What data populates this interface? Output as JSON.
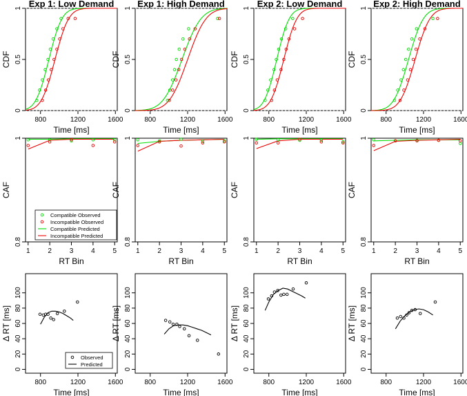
{
  "chart_data": {
    "type": "multi-panel",
    "layout": "3 rows x 4 columns",
    "colors": {
      "compatible": "#00dd00",
      "incompatible": "#ee0000",
      "delta": "#000000",
      "reference": "#aaaaaa"
    },
    "columns": [
      "Exp 1: Low Demand",
      "Exp 1: High Demand",
      "Exp 2: Low Demand",
      "Exp 2: High Demand"
    ],
    "cdf": {
      "xlabel": "Time [ms]",
      "ylabel": "CDF",
      "xlim": [
        640,
        1620
      ],
      "ylim": [
        0,
        1
      ],
      "xticks": [
        "800",
        "1200",
        "1600"
      ],
      "yticks": [
        "0",
        "0.5",
        "1"
      ],
      "panels": [
        {
          "compatible_observed": [
            [
              760,
              0.1
            ],
            [
              790,
              0.2
            ],
            [
              820,
              0.3
            ],
            [
              850,
              0.4
            ],
            [
              880,
              0.5
            ],
            [
              905,
              0.6
            ],
            [
              935,
              0.7
            ],
            [
              975,
              0.8
            ],
            [
              1020,
              0.9
            ]
          ],
          "incompatible_observed": [
            [
              820,
              0.1
            ],
            [
              855,
              0.2
            ],
            [
              885,
              0.3
            ],
            [
              915,
              0.4
            ],
            [
              945,
              0.5
            ],
            [
              975,
              0.6
            ],
            [
              1005,
              0.7
            ],
            [
              1040,
              0.8
            ],
            [
              1095,
              0.9
            ],
            [
              1170,
              0.9
            ]
          ],
          "compatible_predicted": {
            "mu": 890,
            "sigma": 110
          },
          "incompatible_predicted": {
            "mu": 955,
            "sigma": 115
          }
        },
        {
          "compatible_observed": [
            [
              985,
              0.1
            ],
            [
              1010,
              0.2
            ],
            [
              1040,
              0.3
            ],
            [
              1060,
              0.4
            ],
            [
              1080,
              0.5
            ],
            [
              1110,
              0.6
            ],
            [
              1150,
              0.7
            ],
            [
              1210,
              0.8
            ],
            [
              1520,
              0.9
            ]
          ],
          "incompatible_observed": [
            [
              1005,
              0.1
            ],
            [
              1040,
              0.2
            ],
            [
              1075,
              0.3
            ],
            [
              1105,
              0.4
            ],
            [
              1135,
              0.5
            ],
            [
              1170,
              0.6
            ],
            [
              1220,
              0.7
            ],
            [
              1280,
              0.8
            ],
            [
              1540,
              0.9
            ]
          ],
          "compatible_predicted": {
            "mu": 1140,
            "sigma": 160
          },
          "incompatible_predicted": {
            "mu": 1200,
            "sigma": 155
          }
        },
        {
          "compatible_observed": [
            [
              760,
              0.1
            ],
            [
              790,
              0.2
            ],
            [
              820,
              0.3
            ],
            [
              855,
              0.4
            ],
            [
              880,
              0.5
            ],
            [
              905,
              0.6
            ],
            [
              935,
              0.7
            ],
            [
              980,
              0.8
            ],
            [
              1055,
              0.9
            ]
          ],
          "incompatible_observed": [
            [
              830,
              0.1
            ],
            [
              860,
              0.2
            ],
            [
              890,
              0.3
            ],
            [
              930,
              0.4
            ],
            [
              960,
              0.5
            ],
            [
              985,
              0.6
            ],
            [
              1015,
              0.7
            ],
            [
              1075,
              0.8
            ],
            [
              1160,
              0.9
            ]
          ],
          "compatible_predicted": {
            "mu": 885,
            "sigma": 105
          },
          "incompatible_predicted": {
            "mu": 960,
            "sigma": 110
          }
        },
        {
          "compatible_observed": [
            [
              890,
              0.1
            ],
            [
              925,
              0.2
            ],
            [
              960,
              0.3
            ],
            [
              985,
              0.4
            ],
            [
              1010,
              0.5
            ],
            [
              1040,
              0.6
            ],
            [
              1075,
              0.7
            ],
            [
              1125,
              0.8
            ],
            [
              1300,
              0.9
            ]
          ],
          "incompatible_observed": [
            [
              950,
              0.1
            ],
            [
              990,
              0.2
            ],
            [
              1030,
              0.3
            ],
            [
              1060,
              0.4
            ],
            [
              1090,
              0.5
            ],
            [
              1120,
              0.6
            ],
            [
              1160,
              0.7
            ],
            [
              1215,
              0.8
            ],
            [
              1350,
              0.9
            ]
          ],
          "compatible_predicted": {
            "mu": 1040,
            "sigma": 125
          },
          "incompatible_predicted": {
            "mu": 1110,
            "sigma": 125
          }
        }
      ]
    },
    "caf": {
      "xlabel": "RT Bin",
      "ylabel": "CAF",
      "xlim": [
        0.88,
        5.12
      ],
      "ylim": [
        0.8,
        1.0
      ],
      "xticks": [
        "1",
        "2",
        "3",
        "4",
        "5"
      ],
      "yticks": [
        "0.8",
        "1"
      ],
      "panels": [
        {
          "compatible_observed": [
            0.997,
            0.997,
            0.995,
            0.997,
            0.997
          ],
          "incompatible_observed": [
            0.986,
            0.993,
            0.997,
            0.986,
            0.993
          ],
          "compatible_predicted": [
            0.998,
            0.998,
            0.999,
            0.999,
            0.999
          ],
          "incompatible_predicted": [
            0.979,
            0.996,
            0.998,
            0.998,
            0.998
          ]
        },
        {
          "compatible_observed": [
            0.997,
            0.995,
            0.998,
            0.994,
            0.995
          ],
          "incompatible_observed": [
            0.986,
            0.993,
            0.985,
            0.991,
            0.993
          ],
          "compatible_predicted": [
            0.99,
            0.994,
            0.996,
            0.997,
            0.998
          ],
          "incompatible_predicted": [
            0.975,
            0.994,
            0.996,
            0.997,
            0.998
          ]
        },
        {
          "compatible_observed": [
            0.998,
            0.997,
            0.996,
            0.996,
            0.993
          ],
          "incompatible_observed": [
            0.991,
            0.991,
            0.998,
            0.993,
            0.991
          ],
          "compatible_predicted": [
            0.998,
            0.999,
            0.999,
            0.999,
            0.999
          ],
          "incompatible_predicted": [
            0.98,
            0.995,
            0.998,
            0.998,
            0.998
          ]
        },
        {
          "compatible_observed": [
            0.997,
            0.995,
            0.996,
            0.996,
            0.99
          ],
          "incompatible_observed": [
            0.986,
            0.995,
            0.995,
            0.996,
            0.995
          ],
          "compatible_predicted": [
            0.995,
            0.996,
            0.997,
            0.997,
            0.997
          ],
          "incompatible_predicted": [
            0.976,
            0.994,
            0.996,
            0.997,
            0.998
          ]
        }
      ],
      "legend": {
        "position": "bottom-right of first panel",
        "entries": [
          "Compatible Observed",
          "Incompatible Observed",
          "Compatible Predicted",
          "Incompatible Predicted"
        ]
      }
    },
    "delta": {
      "xlabel": "Time [ms]",
      "ylabel": "Δ RT [ms]",
      "xlim": [
        640,
        1620
      ],
      "ylim": [
        -5,
        125
      ],
      "xticks": [
        "800",
        "1200",
        "1600"
      ],
      "yticks": [
        "0",
        "20",
        "40",
        "60",
        "80",
        "100"
      ],
      "panels": [
        {
          "observed": [
            [
              795,
              72
            ],
            [
              830,
              71
            ],
            [
              855,
              72
            ],
            [
              880,
              72
            ],
            [
              910,
              67
            ],
            [
              940,
              65
            ],
            [
              980,
              73
            ],
            [
              1055,
              76
            ],
            [
              1195,
              88
            ]
          ],
          "predicted": [
            [
              800,
              59
            ],
            [
              840,
              68
            ],
            [
              880,
              74
            ],
            [
              920,
              76
            ],
            [
              960,
              76
            ],
            [
              1000,
              75
            ],
            [
              1040,
              73
            ],
            [
              1080,
              70
            ],
            [
              1120,
              67
            ],
            [
              1150,
              64
            ]
          ]
        },
        {
          "observed": [
            [
              965,
              64
            ],
            [
              1010,
              62
            ],
            [
              1045,
              59
            ],
            [
              1085,
              59
            ],
            [
              1115,
              56
            ],
            [
              1165,
              53
            ],
            [
              1215,
              44
            ],
            [
              1305,
              38
            ],
            [
              1530,
              20
            ]
          ],
          "predicted": [
            [
              950,
              46
            ],
            [
              1000,
              53
            ],
            [
              1050,
              57
            ],
            [
              1100,
              58
            ],
            [
              1150,
              58
            ],
            [
              1200,
              57
            ],
            [
              1250,
              55
            ],
            [
              1300,
              53
            ],
            [
              1350,
              51
            ],
            [
              1400,
              48
            ],
            [
              1450,
              45
            ]
          ]
        },
        {
          "observed": [
            [
              795,
              92
            ],
            [
              830,
              96
            ],
            [
              860,
              101
            ],
            [
              895,
              103
            ],
            [
              930,
              97
            ],
            [
              960,
              98
            ],
            [
              995,
              98
            ],
            [
              1060,
              105
            ],
            [
              1200,
              113
            ]
          ],
          "predicted": [
            [
              760,
              77
            ],
            [
              800,
              88
            ],
            [
              850,
              98
            ],
            [
              900,
              103
            ],
            [
              950,
              106
            ],
            [
              1000,
              105
            ],
            [
              1050,
              102
            ],
            [
              1100,
              99
            ],
            [
              1150,
              96
            ],
            [
              1190,
              93
            ]
          ]
        },
        {
          "observed": [
            [
              920,
              67
            ],
            [
              955,
              69
            ],
            [
              990,
              67
            ],
            [
              1020,
              71
            ],
            [
              1045,
              74
            ],
            [
              1075,
              77
            ],
            [
              1110,
              78
            ],
            [
              1165,
              73
            ],
            [
              1325,
              88
            ]
          ],
          "predicted": [
            [
              900,
              53
            ],
            [
              950,
              63
            ],
            [
              1000,
              70
            ],
            [
              1050,
              75
            ],
            [
              1100,
              78
            ],
            [
              1150,
              79
            ],
            [
              1200,
              78
            ],
            [
              1250,
              75
            ],
            [
              1300,
              71
            ]
          ]
        }
      ],
      "legend": {
        "position": "bottom-right of first panel",
        "entries": [
          "Observed",
          "Predicted"
        ]
      }
    }
  }
}
